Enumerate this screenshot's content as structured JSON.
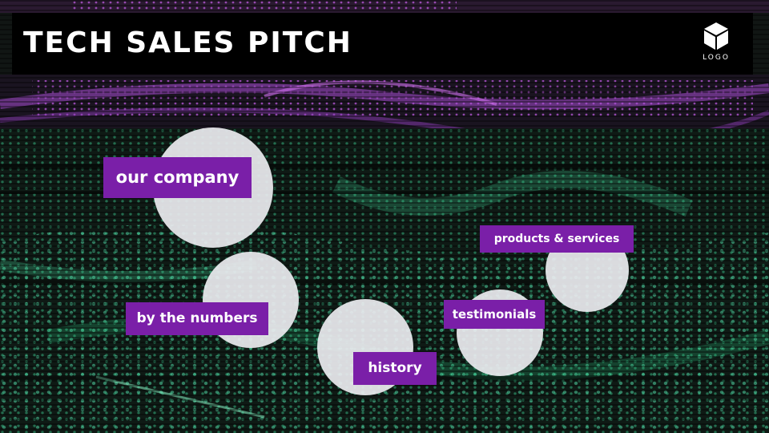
{
  "slide": {
    "title": "TECH SALES PITCH",
    "logo_text": "LOGO"
  },
  "nav": {
    "our_company": "our company",
    "by_the_numbers": "by the numbers",
    "history": "history",
    "testimonials": "testimonials",
    "products_services": "products & services"
  },
  "colors": {
    "label_bg": "#7a1fa8",
    "title_bar_bg": "#000000",
    "circle_fill": "#ebebf0",
    "bg_green": "#2fd28a",
    "bg_purple": "#b04ad8"
  },
  "icons": {
    "logo": "cube-icon"
  }
}
